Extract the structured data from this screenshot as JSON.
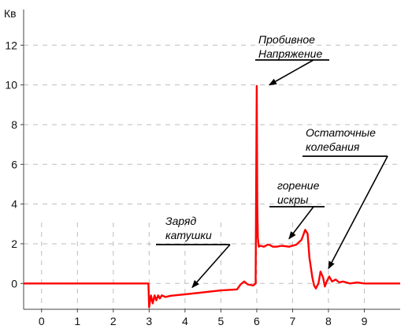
{
  "chart_data": {
    "type": "line",
    "title": "",
    "xlabel": "",
    "ylabel": "Кв",
    "xlim": [
      -0.5,
      10
    ],
    "ylim": [
      -1.3,
      13.8
    ],
    "x_ticks": [
      "0",
      "1",
      "2",
      "3",
      "4",
      "5",
      "6",
      "7",
      "8",
      "9"
    ],
    "y_ticks": [
      "0",
      "2",
      "4",
      "6",
      "8",
      "10",
      "12"
    ],
    "grid": true,
    "series": [
      {
        "name": "",
        "color": "#ff0000",
        "x": [
          -0.5,
          0,
          1,
          2,
          2.98,
          3.0,
          3.05,
          3.1,
          3.15,
          3.2,
          3.25,
          3.3,
          3.35,
          3.45,
          3.6,
          3.8,
          4.0,
          4.5,
          5.0,
          5.45,
          5.55,
          5.65,
          5.75,
          5.9,
          5.97,
          6.0,
          6.015,
          6.03,
          6.06,
          6.1,
          6.2,
          6.3,
          6.35,
          6.45,
          6.55,
          6.7,
          6.9,
          7.1,
          7.25,
          7.35,
          7.42,
          7.47,
          7.55,
          7.6,
          7.65,
          7.72,
          7.78,
          7.85,
          7.9,
          7.95,
          8.02,
          8.1,
          8.2,
          8.3,
          8.4,
          8.6,
          8.8,
          9.0,
          9.5,
          10.0
        ],
        "y": [
          0,
          0,
          0,
          0,
          0,
          -1.2,
          -0.6,
          -1.0,
          -0.6,
          -0.85,
          -0.6,
          -0.75,
          -0.6,
          -0.68,
          -0.62,
          -0.58,
          -0.55,
          -0.45,
          -0.35,
          -0.3,
          -0.05,
          0.1,
          -0.05,
          -0.1,
          0.0,
          9.95,
          4.0,
          2.3,
          1.85,
          1.9,
          1.85,
          1.95,
          1.95,
          1.85,
          1.85,
          1.9,
          1.85,
          1.95,
          2.2,
          2.7,
          2.5,
          1.3,
          0.3,
          -0.1,
          -0.25,
          0.0,
          0.6,
          0.3,
          -0.15,
          0.1,
          0.35,
          0.1,
          0.2,
          0.05,
          0.1,
          0.0,
          0.05,
          0.0,
          0.0,
          0.0
        ]
      }
    ],
    "annotations": [
      {
        "lines": [
          "Пробивное",
          "Напряжение"
        ],
        "target": [
          6.35,
          10.0
        ]
      },
      {
        "lines": [
          "Заряд",
          "катушки"
        ],
        "target": [
          4.2,
          -0.2
        ]
      },
      {
        "lines": [
          "горение",
          "искры"
        ],
        "target": [
          6.9,
          2.25
        ]
      },
      {
        "lines": [
          "Остаточные",
          "колебания"
        ],
        "target": [
          8.0,
          0.75
        ]
      }
    ]
  }
}
